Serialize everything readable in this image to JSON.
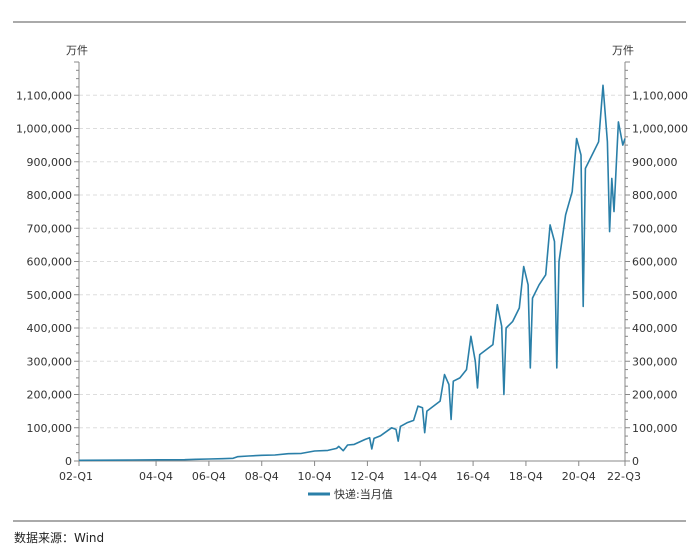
{
  "source_label": "数据来源：Wind",
  "chart_data": {
    "type": "line",
    "y_unit_left": "万件",
    "y_unit_right": "万件",
    "ylim": [
      0,
      1200000
    ],
    "y_ticks": [
      0,
      100000,
      200000,
      300000,
      400000,
      500000,
      600000,
      700000,
      800000,
      900000,
      1000000,
      1100000
    ],
    "y_tick_labels": [
      "0",
      "100,000",
      "200,000",
      "300,000",
      "400,000",
      "500,000",
      "600,000",
      "700,000",
      "800,000",
      "900,000",
      "1,000,000",
      "1,100,000"
    ],
    "x_start": "2002-01",
    "x_end": "2022-09",
    "x_tick_labels": [
      {
        "label": "02-Q1",
        "date": "2002-01"
      },
      {
        "label": "04-Q4",
        "date": "2004-12"
      },
      {
        "label": "06-Q4",
        "date": "2006-12"
      },
      {
        "label": "08-Q4",
        "date": "2008-12"
      },
      {
        "label": "10-Q4",
        "date": "2010-12"
      },
      {
        "label": "12-Q4",
        "date": "2012-12"
      },
      {
        "label": "14-Q4",
        "date": "2014-12"
      },
      {
        "label": "16-Q4",
        "date": "2016-12"
      },
      {
        "label": "18-Q4",
        "date": "2018-12"
      },
      {
        "label": "20-Q4",
        "date": "2020-12"
      },
      {
        "label": "22-Q3",
        "date": "2022-09"
      }
    ],
    "grid": true,
    "legend_position": "bottom-center",
    "series": [
      {
        "name": "快递:当月值",
        "color": "#2a7fa8",
        "points": [
          [
            "2002-01",
            2000
          ],
          [
            "2003-01",
            2500
          ],
          [
            "2004-01",
            3000
          ],
          [
            "2005-01",
            3500
          ],
          [
            "2006-01",
            4000
          ],
          [
            "2006-06",
            5000
          ],
          [
            "2006-12",
            6000
          ],
          [
            "2007-06",
            7000
          ],
          [
            "2007-11",
            8000
          ],
          [
            "2008-01",
            13000
          ],
          [
            "2008-06",
            15000
          ],
          [
            "2008-12",
            17000
          ],
          [
            "2009-06",
            18000
          ],
          [
            "2009-12",
            22000
          ],
          [
            "2010-06",
            23000
          ],
          [
            "2010-12",
            30000
          ],
          [
            "2011-06",
            32000
          ],
          [
            "2011-10",
            38000
          ],
          [
            "2011-11",
            44000
          ],
          [
            "2012-01",
            31000
          ],
          [
            "2012-03",
            48000
          ],
          [
            "2012-06",
            50000
          ],
          [
            "2012-11",
            65000
          ],
          [
            "2013-01",
            70000
          ],
          [
            "2013-02",
            36000
          ],
          [
            "2013-03",
            68000
          ],
          [
            "2013-06",
            76000
          ],
          [
            "2013-11",
            100000
          ],
          [
            "2014-01",
            95000
          ],
          [
            "2014-02",
            60000
          ],
          [
            "2014-03",
            104000
          ],
          [
            "2014-06",
            115000
          ],
          [
            "2014-09",
            122000
          ],
          [
            "2014-11",
            165000
          ],
          [
            "2015-01",
            160000
          ],
          [
            "2015-02",
            85000
          ],
          [
            "2015-03",
            150000
          ],
          [
            "2015-06",
            165000
          ],
          [
            "2015-09",
            180000
          ],
          [
            "2015-11",
            260000
          ],
          [
            "2016-01",
            230000
          ],
          [
            "2016-02",
            125000
          ],
          [
            "2016-03",
            240000
          ],
          [
            "2016-06",
            250000
          ],
          [
            "2016-09",
            275000
          ],
          [
            "2016-11",
            375000
          ],
          [
            "2017-01",
            300000
          ],
          [
            "2017-02",
            220000
          ],
          [
            "2017-03",
            320000
          ],
          [
            "2017-06",
            335000
          ],
          [
            "2017-09",
            350000
          ],
          [
            "2017-11",
            470000
          ],
          [
            "2018-01",
            405000
          ],
          [
            "2018-02",
            200000
          ],
          [
            "2018-03",
            400000
          ],
          [
            "2018-06",
            420000
          ],
          [
            "2018-09",
            460000
          ],
          [
            "2018-11",
            585000
          ],
          [
            "2019-01",
            530000
          ],
          [
            "2019-02",
            280000
          ],
          [
            "2019-03",
            490000
          ],
          [
            "2019-06",
            530000
          ],
          [
            "2019-09",
            560000
          ],
          [
            "2019-11",
            710000
          ],
          [
            "2020-01",
            660000
          ],
          [
            "2020-02",
            280000
          ],
          [
            "2020-03",
            600000
          ],
          [
            "2020-06",
            740000
          ],
          [
            "2020-09",
            810000
          ],
          [
            "2020-11",
            970000
          ],
          [
            "2021-01",
            920000
          ],
          [
            "2021-02",
            465000
          ],
          [
            "2021-03",
            880000
          ],
          [
            "2021-06",
            920000
          ],
          [
            "2021-09",
            960000
          ],
          [
            "2021-11",
            1130000
          ],
          [
            "2022-01",
            960000
          ],
          [
            "2022-02",
            690000
          ],
          [
            "2022-03",
            850000
          ],
          [
            "2022-04",
            750000
          ],
          [
            "2022-06",
            1020000
          ],
          [
            "2022-08",
            950000
          ],
          [
            "2022-09",
            970000
          ]
        ]
      }
    ]
  }
}
